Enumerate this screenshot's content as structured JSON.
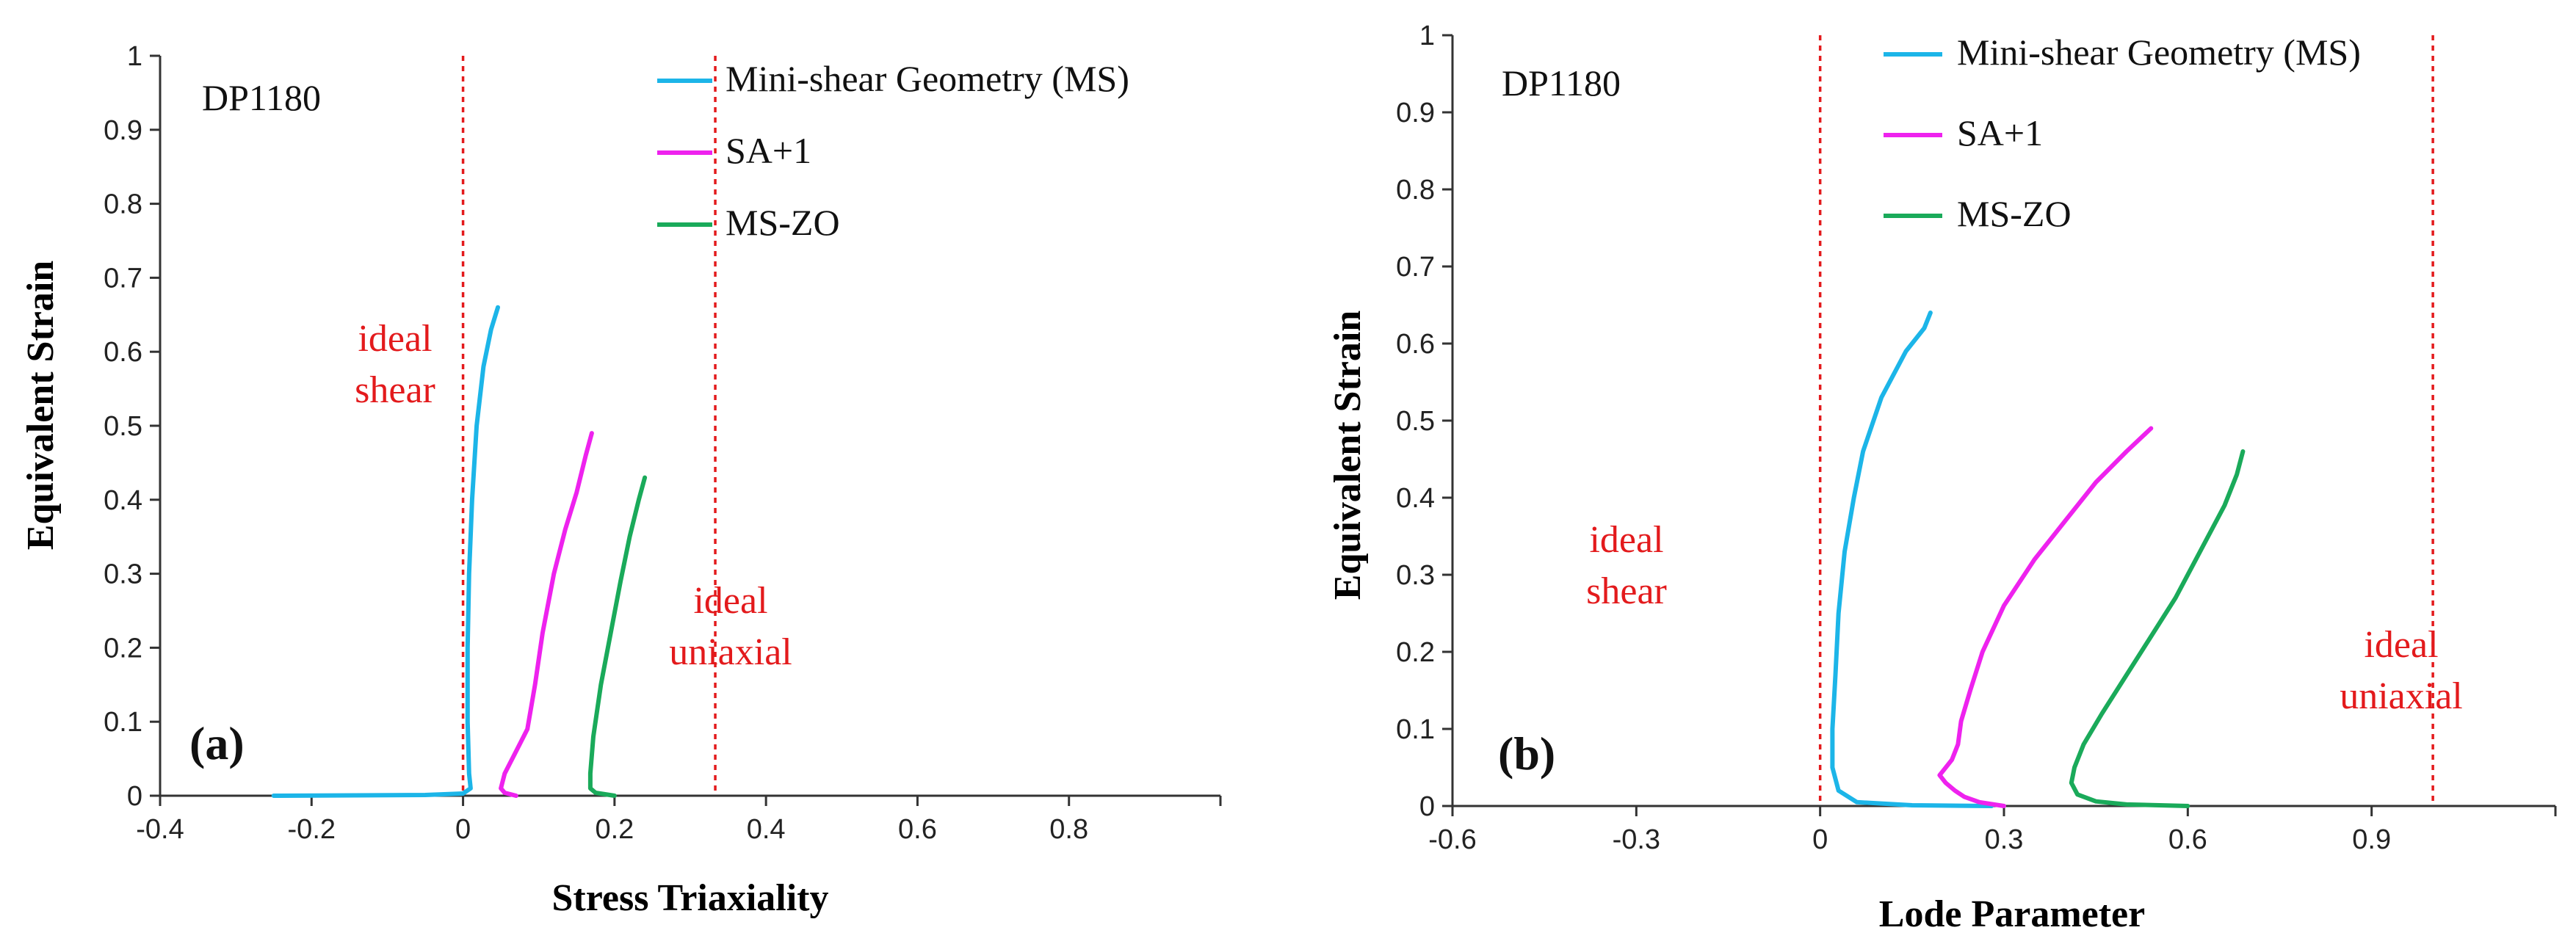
{
  "chart_data": [
    {
      "type": "line",
      "panel_label": "(a)",
      "material": "DP1180",
      "xlabel": "Stress Triaxiality",
      "ylabel": "Equivalent Strain",
      "xlim": [
        -0.4,
        1.0
      ],
      "ylim": [
        0,
        1
      ],
      "x_ticks": [
        "-0.4",
        "-0.2",
        "0",
        "0.2",
        "0.4",
        "0.6",
        "0.8"
      ],
      "x_tick_values": [
        -0.4,
        -0.2,
        0,
        0.2,
        0.4,
        0.6,
        0.8
      ],
      "y_ticks": [
        "0",
        "0.1",
        "0.2",
        "0.3",
        "0.4",
        "0.5",
        "0.6",
        "0.7",
        "0.8",
        "0.9",
        "1"
      ],
      "y_tick_values": [
        0,
        0.1,
        0.2,
        0.3,
        0.4,
        0.5,
        0.6,
        0.7,
        0.8,
        0.9,
        1.0
      ],
      "legend_position": "top-right",
      "reference_lines": [
        {
          "x": 0,
          "label_lines": [
            "ideal",
            "shear"
          ],
          "label_side": "left",
          "label_y": 0.58
        },
        {
          "x": 0.333,
          "label_lines": [
            "ideal",
            "uniaxial"
          ],
          "label_side": "right",
          "label_y": 0.22
        }
      ],
      "series": [
        {
          "name": "Mini-shear Geometry (MS)",
          "color": "#1cb5e8",
          "points": [
            [
              -0.25,
              0
            ],
            [
              -0.05,
              0.001
            ],
            [
              0.0,
              0.003
            ],
            [
              0.01,
              0.01
            ],
            [
              0.008,
              0.03
            ],
            [
              0.006,
              0.1
            ],
            [
              0.006,
              0.2
            ],
            [
              0.008,
              0.3
            ],
            [
              0.012,
              0.4
            ],
            [
              0.018,
              0.5
            ],
            [
              0.027,
              0.58
            ],
            [
              0.037,
              0.63
            ],
            [
              0.046,
              0.66
            ]
          ]
        },
        {
          "name": "SA+1",
          "color": "#ee22ee",
          "points": [
            [
              0.07,
              0
            ],
            [
              0.055,
              0.004
            ],
            [
              0.05,
              0.01
            ],
            [
              0.055,
              0.03
            ],
            [
              0.07,
              0.06
            ],
            [
              0.085,
              0.09
            ],
            [
              0.095,
              0.15
            ],
            [
              0.105,
              0.22
            ],
            [
              0.12,
              0.3
            ],
            [
              0.135,
              0.36
            ],
            [
              0.15,
              0.41
            ],
            [
              0.162,
              0.46
            ],
            [
              0.17,
              0.49
            ]
          ]
        },
        {
          "name": "MS-ZO",
          "color": "#1aaa5a",
          "points": [
            [
              0.2,
              0
            ],
            [
              0.175,
              0.004
            ],
            [
              0.168,
              0.01
            ],
            [
              0.168,
              0.03
            ],
            [
              0.172,
              0.08
            ],
            [
              0.182,
              0.15
            ],
            [
              0.195,
              0.22
            ],
            [
              0.208,
              0.29
            ],
            [
              0.22,
              0.35
            ],
            [
              0.232,
              0.4
            ],
            [
              0.24,
              0.43
            ]
          ]
        }
      ]
    },
    {
      "type": "line",
      "panel_label": "(b)",
      "material": "DP1180",
      "xlabel": "Lode Parameter",
      "ylabel": "Equivalent Strain",
      "xlim": [
        -0.6,
        1.2
      ],
      "ylim": [
        0,
        1
      ],
      "x_ticks": [
        "-0.6",
        "-0.3",
        "0",
        "0.3",
        "0.6",
        "0.9"
      ],
      "x_tick_values": [
        -0.6,
        -0.3,
        0,
        0.3,
        0.6,
        0.9
      ],
      "y_ticks": [
        "0",
        "0.1",
        "0.2",
        "0.3",
        "0.4",
        "0.5",
        "0.6",
        "0.7",
        "0.8",
        "0.9",
        "1"
      ],
      "y_tick_values": [
        0,
        0.1,
        0.2,
        0.3,
        0.4,
        0.5,
        0.6,
        0.7,
        0.8,
        0.9,
        1.0
      ],
      "legend_position": "top-right",
      "reference_lines": [
        {
          "x": 0,
          "label_lines": [
            "ideal",
            "shear"
          ],
          "label_side": "left",
          "label_y": 0.33
        },
        {
          "x": 1.0,
          "label_lines": [
            "ideal",
            "uniaxial"
          ],
          "label_side": "left",
          "label_y": 0.2
        }
      ],
      "series": [
        {
          "name": "Mini-shear Geometry (MS)",
          "color": "#1cb5e8",
          "points": [
            [
              0.28,
              0
            ],
            [
              0.15,
              0.001
            ],
            [
              0.06,
              0.005
            ],
            [
              0.03,
              0.02
            ],
            [
              0.02,
              0.05
            ],
            [
              0.02,
              0.1
            ],
            [
              0.025,
              0.17
            ],
            [
              0.03,
              0.25
            ],
            [
              0.04,
              0.33
            ],
            [
              0.055,
              0.4
            ],
            [
              0.07,
              0.46
            ],
            [
              0.1,
              0.53
            ],
            [
              0.14,
              0.59
            ],
            [
              0.17,
              0.62
            ],
            [
              0.18,
              0.64
            ]
          ]
        },
        {
          "name": "SA+1",
          "color": "#ee22ee",
          "points": [
            [
              0.3,
              0
            ],
            [
              0.26,
              0.005
            ],
            [
              0.235,
              0.012
            ],
            [
              0.22,
              0.02
            ],
            [
              0.205,
              0.03
            ],
            [
              0.195,
              0.04
            ],
            [
              0.2,
              0.045
            ],
            [
              0.215,
              0.06
            ],
            [
              0.225,
              0.08
            ],
            [
              0.23,
              0.11
            ],
            [
              0.245,
              0.15
            ],
            [
              0.265,
              0.2
            ],
            [
              0.3,
              0.26
            ],
            [
              0.35,
              0.32
            ],
            [
              0.4,
              0.37
            ],
            [
              0.45,
              0.42
            ],
            [
              0.5,
              0.46
            ],
            [
              0.54,
              0.49
            ]
          ]
        },
        {
          "name": "MS-ZO",
          "color": "#1aaa5a",
          "points": [
            [
              0.6,
              0
            ],
            [
              0.5,
              0.002
            ],
            [
              0.45,
              0.006
            ],
            [
              0.42,
              0.015
            ],
            [
              0.41,
              0.03
            ],
            [
              0.415,
              0.05
            ],
            [
              0.43,
              0.08
            ],
            [
              0.46,
              0.12
            ],
            [
              0.5,
              0.17
            ],
            [
              0.54,
              0.22
            ],
            [
              0.58,
              0.27
            ],
            [
              0.62,
              0.33
            ],
            [
              0.66,
              0.39
            ],
            [
              0.68,
              0.43
            ],
            [
              0.69,
              0.46
            ]
          ]
        }
      ]
    }
  ]
}
